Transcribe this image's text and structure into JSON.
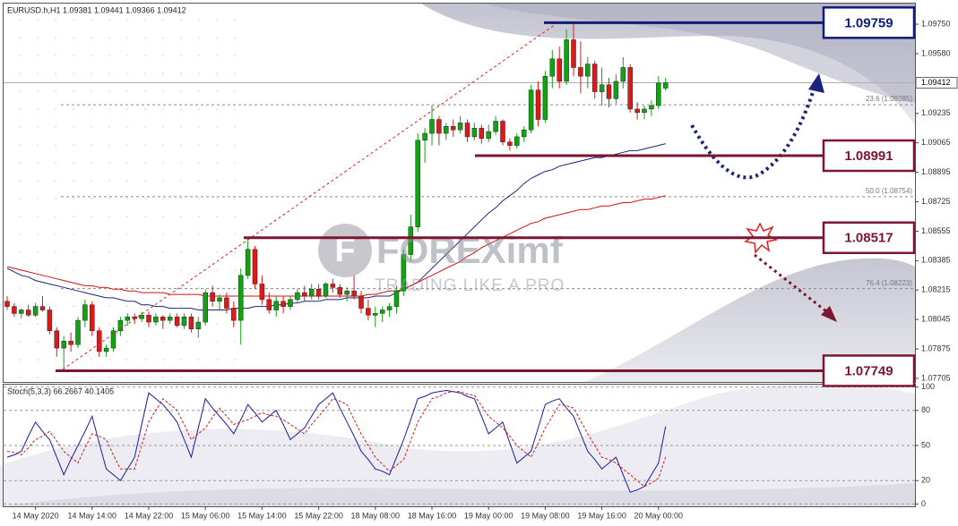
{
  "chart_data": [
    {
      "type": "candlestick",
      "title": "EURUSD.h,H1  1.09381 1.09441 1.09366 1.09412",
      "categories": [
        null,
        null,
        null,
        null,
        "14 May 2020",
        null,
        null,
        null,
        null,
        null,
        null,
        null,
        "14 May 14:00",
        null,
        null,
        null,
        null,
        null,
        null,
        null,
        "14 May 22:00",
        null,
        null,
        null,
        null,
        null,
        null,
        null,
        "15 May 06:00",
        null,
        null,
        null,
        null,
        null,
        null,
        null,
        "15 May 14:00",
        null,
        null,
        null,
        null,
        null,
        null,
        null,
        "15 May 22:00",
        null,
        null,
        null,
        null,
        null,
        null,
        null,
        "18 May 08:00",
        null,
        null,
        null,
        null,
        null,
        null,
        null,
        "18 May 16:00",
        null,
        null,
        null,
        null,
        null,
        null,
        null,
        "19 May 00:00",
        null,
        null,
        null,
        null,
        null,
        null,
        null,
        "19 May 08:00",
        null,
        null,
        null,
        null,
        null,
        null,
        null,
        "19 May 16:00",
        null,
        null,
        null,
        null,
        null,
        null,
        null,
        "20 May 00:00",
        null
      ],
      "candles": [
        [
          1.0815,
          1.0818,
          1.081,
          1.0812
        ],
        [
          1.0812,
          1.0814,
          1.0806,
          1.0808
        ],
        [
          1.0808,
          1.0811,
          1.0805,
          1.081
        ],
        [
          1.081,
          1.0813,
          1.0806,
          1.0807
        ],
        [
          1.0807,
          1.0814,
          1.0806,
          1.0812
        ],
        [
          1.0812,
          1.0818,
          1.0809,
          1.081
        ],
        [
          1.081,
          1.0812,
          1.0796,
          1.0798
        ],
        [
          1.0798,
          1.08,
          1.0783,
          1.0788
        ],
        [
          1.0788,
          1.0795,
          1.0775,
          1.0792
        ],
        [
          1.0792,
          1.0797,
          1.0786,
          1.079
        ],
        [
          1.079,
          1.0806,
          1.0788,
          1.0804
        ],
        [
          1.0804,
          1.0816,
          1.08,
          1.0813
        ],
        [
          1.0813,
          1.0815,
          1.0795,
          1.0798
        ],
        [
          1.0798,
          1.08,
          1.0783,
          1.0786
        ],
        [
          1.0786,
          1.079,
          1.0783,
          1.0788
        ],
        [
          1.0788,
          1.08,
          1.0786,
          1.0798
        ],
        [
          1.0798,
          1.0806,
          1.0795,
          1.0804
        ],
        [
          1.0804,
          1.0808,
          1.0801,
          1.0806
        ],
        [
          1.0806,
          1.0808,
          1.0802,
          1.0805
        ],
        [
          1.0805,
          1.0809,
          1.0803,
          1.0807
        ],
        [
          1.0807,
          1.0809,
          1.08,
          1.0803
        ],
        [
          1.0803,
          1.0808,
          1.0801,
          1.0806
        ],
        [
          1.0806,
          1.0807,
          1.0799,
          1.0804
        ],
        [
          1.0804,
          1.0808,
          1.0802,
          1.0806
        ],
        [
          1.0806,
          1.0808,
          1.08,
          1.0801
        ],
        [
          1.0801,
          1.0808,
          1.0799,
          1.0806
        ],
        [
          1.0806,
          1.0808,
          1.0797,
          1.0799
        ],
        [
          1.0799,
          1.0806,
          1.0794,
          1.0803
        ],
        [
          1.0803,
          1.0822,
          1.0801,
          1.082
        ],
        [
          1.082,
          1.0824,
          1.0812,
          1.0815
        ],
        [
          1.0815,
          1.0819,
          1.081,
          1.0817
        ],
        [
          1.0817,
          1.082,
          1.0808,
          1.0811
        ],
        [
          1.0811,
          1.0815,
          1.08,
          1.0804
        ],
        [
          1.0804,
          1.0834,
          1.079,
          1.083
        ],
        [
          1.083,
          1.0852,
          1.0828,
          1.0845
        ],
        [
          1.0845,
          1.0847,
          1.0822,
          1.0825
        ],
        [
          1.0825,
          1.083,
          1.0813,
          1.0816
        ],
        [
          1.0816,
          1.082,
          1.0808,
          1.081
        ],
        [
          1.081,
          1.0818,
          1.0806,
          1.0815
        ],
        [
          1.0815,
          1.0818,
          1.0808,
          1.0812
        ],
        [
          1.0812,
          1.0818,
          1.081,
          1.0816
        ],
        [
          1.0816,
          1.0822,
          1.0814,
          1.082
        ],
        [
          1.082,
          1.0824,
          1.0815,
          1.0818
        ],
        [
          1.0818,
          1.0825,
          1.0816,
          1.0822
        ],
        [
          1.0822,
          1.0825,
          1.0816,
          1.0818
        ],
        [
          1.0818,
          1.0826,
          1.0817,
          1.0825
        ],
        [
          1.0825,
          1.0828,
          1.082,
          1.0823
        ],
        [
          1.0823,
          1.0825,
          1.0817,
          1.0819
        ],
        [
          1.0819,
          1.0823,
          1.0815,
          1.0821
        ],
        [
          1.0821,
          1.083,
          1.0816,
          1.0818
        ],
        [
          1.0818,
          1.0821,
          1.0808,
          1.0811
        ],
        [
          1.0811,
          1.0816,
          1.0804,
          1.0807
        ],
        [
          1.0807,
          1.0812,
          1.08,
          1.0808
        ],
        [
          1.0808,
          1.0812,
          1.0803,
          1.081
        ],
        [
          1.081,
          1.0814,
          1.0806,
          1.0812
        ],
        [
          1.0812,
          1.0824,
          1.0808,
          1.0821
        ],
        [
          1.0821,
          1.0845,
          1.0818,
          1.0842
        ],
        [
          1.0842,
          1.0865,
          1.0838,
          1.0858
        ],
        [
          1.0858,
          1.0912,
          1.0855,
          1.0908
        ],
        [
          1.0908,
          1.0915,
          1.0895,
          1.0912
        ],
        [
          1.0912,
          1.0928,
          1.0905,
          1.092
        ],
        [
          1.092,
          1.0922,
          1.0905,
          1.0912
        ],
        [
          1.0912,
          1.0918,
          1.0908,
          1.0916
        ],
        [
          1.0916,
          1.092,
          1.091,
          1.0914
        ],
        [
          1.0914,
          1.0922,
          1.0912,
          1.0918
        ],
        [
          1.0918,
          1.092,
          1.0907,
          1.091
        ],
        [
          1.091,
          1.0918,
          1.0908,
          1.0915
        ],
        [
          1.0915,
          1.0917,
          1.0906,
          1.0909
        ],
        [
          1.0909,
          1.0917,
          1.0907,
          1.0913
        ],
        [
          1.0913,
          1.0922,
          1.0911,
          1.0919
        ],
        [
          1.0919,
          1.092,
          1.0905,
          1.0907
        ],
        [
          1.0907,
          1.0909,
          1.0902,
          1.0905
        ],
        [
          1.0905,
          1.0912,
          1.0903,
          1.091
        ],
        [
          1.091,
          1.0916,
          1.0907,
          1.0914
        ],
        [
          1.0914,
          1.094,
          1.0912,
          1.0937
        ],
        [
          1.0937,
          1.0942,
          1.0916,
          1.092
        ],
        [
          1.092,
          1.0948,
          1.0918,
          1.0945
        ],
        [
          1.0945,
          1.096,
          1.0938,
          1.0955
        ],
        [
          1.0955,
          1.0962,
          1.0938,
          1.0942
        ],
        [
          1.0942,
          1.0972,
          1.094,
          1.0966
        ],
        [
          1.0966,
          1.0976,
          1.0945,
          1.095
        ],
        [
          1.095,
          1.0965,
          1.0935,
          1.0945
        ],
        [
          1.0945,
          1.0956,
          1.0938,
          1.0952
        ],
        [
          1.0952,
          1.0954,
          1.0932,
          1.0936
        ],
        [
          1.0936,
          1.095,
          1.0928,
          1.094
        ],
        [
          1.094,
          1.0944,
          1.0927,
          1.0932
        ],
        [
          1.0932,
          1.0946,
          1.0929,
          1.0942
        ],
        [
          1.0942,
          1.0956,
          1.0938,
          1.095
        ],
        [
          1.095,
          1.0952,
          1.0924,
          1.0926
        ],
        [
          1.0926,
          1.093,
          1.092,
          1.0924
        ],
        [
          1.0924,
          1.0928,
          1.092,
          1.0926
        ],
        [
          1.0926,
          1.0931,
          1.0922,
          1.0928
        ],
        [
          1.0928,
          1.0945,
          1.0926,
          1.0941
        ],
        [
          1.09381,
          1.09441,
          1.09366,
          1.09412
        ]
      ],
      "up_color": "#12a312",
      "down_color": "#e01818",
      "series": [
        {
          "color": "#1a237e",
          "values": [
            1.0834,
            1.0832,
            1.083,
            1.0829,
            1.0827,
            1.0826,
            1.0825,
            1.0824,
            1.0823,
            1.0822,
            1.0821,
            1.082,
            1.0819,
            1.0818,
            1.0817,
            1.0817,
            1.0816,
            1.0815,
            1.0815,
            1.0813,
            1.0813,
            1.0812,
            1.0812,
            1.0811,
            1.0811,
            1.0811,
            1.0811,
            1.081,
            1.081,
            1.081,
            1.081,
            1.081,
            1.0811,
            1.0811,
            1.0811,
            1.0812,
            1.0812,
            1.0812,
            1.0813,
            1.0813,
            1.0814,
            1.0814,
            1.0815,
            1.0815,
            1.0815,
            1.0816,
            1.0816,
            1.0816,
            1.0817,
            1.0817,
            1.0817,
            1.0817,
            1.0818,
            1.0818,
            1.0818,
            1.082,
            1.0822,
            1.0824,
            1.0826,
            1.083,
            1.0834,
            1.0838,
            1.0842,
            1.0846,
            1.085,
            1.0854,
            1.0858,
            1.0862,
            1.0866,
            1.0869,
            1.0873,
            1.0876,
            1.0879,
            1.0883,
            1.0886,
            1.0888,
            1.089,
            1.0891,
            1.0893,
            1.0894,
            1.0895,
            1.0896,
            1.0897,
            1.0898,
            1.0898,
            1.0899,
            1.09,
            1.0901,
            1.0902,
            1.0902,
            1.0903,
            1.0904,
            1.0905,
            1.0906
          ]
        },
        {
          "color": "#d01010",
          "values": [
            1.0835,
            1.0834,
            1.0833,
            1.0832,
            1.0831,
            1.083,
            1.0829,
            1.0828,
            1.0827,
            1.0826,
            1.0825,
            1.0824,
            1.0824,
            1.0823,
            1.0823,
            1.0822,
            1.0822,
            1.0821,
            1.0821,
            1.082,
            1.082,
            1.082,
            1.082,
            1.0819,
            1.0819,
            1.0819,
            1.0819,
            1.0819,
            1.0818,
            1.0818,
            1.0818,
            1.0818,
            1.0818,
            1.0818,
            1.0818,
            1.0818,
            1.0818,
            1.0818,
            1.0818,
            1.0818,
            1.0818,
            1.0818,
            1.0818,
            1.0818,
            1.0818,
            1.0818,
            1.0818,
            1.0818,
            1.0818,
            1.0818,
            1.0818,
            1.0819,
            1.0819,
            1.082,
            1.0821,
            1.0821,
            1.0822,
            1.0824,
            1.0826,
            1.0828,
            1.083,
            1.0832,
            1.0834,
            1.0836,
            1.0838,
            1.0841,
            1.0843,
            1.0846,
            1.0848,
            1.085,
            1.0852,
            1.0854,
            1.0856,
            1.0858,
            1.086,
            1.0861,
            1.0863,
            1.0864,
            1.0865,
            1.0866,
            1.0867,
            1.0868,
            1.0868,
            1.0869,
            1.087,
            1.087,
            1.0871,
            1.0872,
            1.0872,
            1.0873,
            1.0874,
            1.0874,
            1.0875,
            1.0876
          ]
        }
      ],
      "ylim": [
        1.07679,
        1.09864
      ],
      "yticks": [
        {
          "value": 1.0975,
          "label": "1.09750"
        },
        {
          "value": 1.0958,
          "label": "1.09580"
        },
        1.09235,
        1.09065,
        {
          "value": 1.08895,
          "label": "1.08895"
        },
        1.08725,
        1.08555,
        1.08385,
        1.08215,
        1.08045,
        1.07875,
        1.07705
      ],
      "last_price": 1.09412,
      "fib_levels": [
        {
          "value": 1.09285,
          "label": "23.6 (1.09285)"
        },
        {
          "value": 1.08754,
          "label": "50.0 (1.08754)"
        },
        {
          "value": 1.08223,
          "label": "76.4 (1.08223)"
        }
      ],
      "levels": [
        {
          "value": 1.09759,
          "color": "#0d1b7a"
        },
        {
          "value": 1.08991,
          "color": "#7b1530"
        },
        {
          "value": 1.08517,
          "color": "#7b1530"
        },
        {
          "value": 1.07749,
          "color": "#7b1530"
        }
      ],
      "watermark": {
        "brand": "FOREXimf",
        "tagline": "TRADING LIKE A PRO"
      },
      "grid": false
    },
    {
      "type": "line",
      "title": "Stoch(5,3,3) 66.2667 40.1405",
      "series": [
        {
          "color": "#1a1aa6",
          "values": [
            40,
            42,
            45,
            58,
            70,
            62,
            55,
            40,
            25,
            38,
            50,
            62,
            75,
            52,
            30,
            25,
            20,
            30,
            40,
            68,
            95,
            90,
            85,
            78,
            70,
            55,
            40,
            65,
            90,
            82,
            75,
            68,
            60,
            72,
            85,
            78,
            70,
            75,
            80,
            68,
            55,
            60,
            65,
            75,
            85,
            90,
            95,
            82,
            70,
            58,
            45,
            38,
            30,
            28,
            25,
            40,
            55,
            72,
            90,
            92,
            95,
            96,
            97,
            96,
            95,
            92,
            90,
            75,
            60,
            65,
            70,
            52,
            35,
            40,
            45,
            65,
            85,
            88,
            90,
            82,
            75,
            60,
            45,
            38,
            30,
            35,
            40,
            25,
            10,
            12,
            15,
            25,
            35,
            66.2667
          ]
        },
        {
          "color": "#d02020",
          "dashed": true,
          "values": [
            45,
            44,
            42,
            48,
            55,
            58,
            62,
            54,
            45,
            40,
            35,
            48,
            60,
            58,
            55,
            42,
            30,
            30,
            30,
            50,
            70,
            80,
            90,
            85,
            80,
            68,
            55,
            60,
            65,
            74,
            82,
            75,
            68,
            70,
            72,
            75,
            78,
            76,
            75,
            72,
            68,
            64,
            60,
            68,
            75,
            82,
            90,
            88,
            85,
            72,
            60,
            50,
            40,
            34,
            28,
            33,
            38,
            54,
            70,
            80,
            90,
            92,
            95,
            96,
            96,
            94,
            93,
            84,
            75,
            70,
            65,
            58,
            50,
            45,
            40,
            52,
            65,
            75,
            85,
            84,
            82,
            71,
            60,
            50,
            40,
            38,
            35,
            30,
            25,
            20,
            15,
            18,
            22,
            40.1405
          ]
        }
      ],
      "ylim": [
        -2,
        102
      ],
      "yticks": [
        100,
        80,
        50,
        20,
        0
      ],
      "grid": true
    }
  ]
}
